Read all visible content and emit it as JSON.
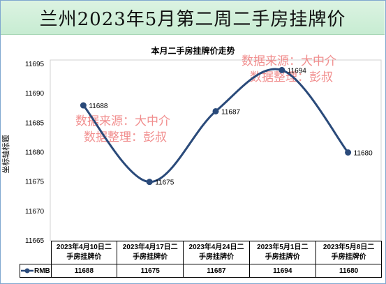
{
  "banner_title": "兰州2023年5月第二周二手房挂牌价",
  "watermarks": [
    {
      "line1": "数据来源：大中介",
      "line2": "数据整理：彭叔"
    },
    {
      "line1": "数据来源：大中介",
      "line2": "数据整理：彭叔"
    }
  ],
  "chart_data": {
    "type": "line",
    "title": "本月二手房挂牌价走势",
    "ylabel": "坐标轴标题",
    "xlabel": "",
    "categories": [
      "2023年4月10日二手房挂牌价",
      "2023年4月17日二手房挂牌价",
      "2023年4月24日二手房挂牌价",
      "2023年5月1日二手房挂牌价",
      "2023年5月8日二手房挂牌价"
    ],
    "category_lines": [
      [
        "2023年4月10日二",
        "手房挂牌价"
      ],
      [
        "2023年4月17日二",
        "手房挂牌价"
      ],
      [
        "2023年4月24日二",
        "手房挂牌价"
      ],
      [
        "2023年5月1日二",
        "手房挂牌价"
      ],
      [
        "2023年5月8日二",
        "手房挂牌价"
      ]
    ],
    "series": [
      {
        "name": "RMB",
        "values": [
          11688,
          11675,
          11687,
          11694,
          11680
        ],
        "color": "#2a4a7a"
      }
    ],
    "ylim": [
      11665,
      11695
    ],
    "yticks": [
      11665,
      11670,
      11675,
      11680,
      11685,
      11690,
      11695
    ],
    "grid": false,
    "legend": "data-table",
    "smooth": true
  }
}
